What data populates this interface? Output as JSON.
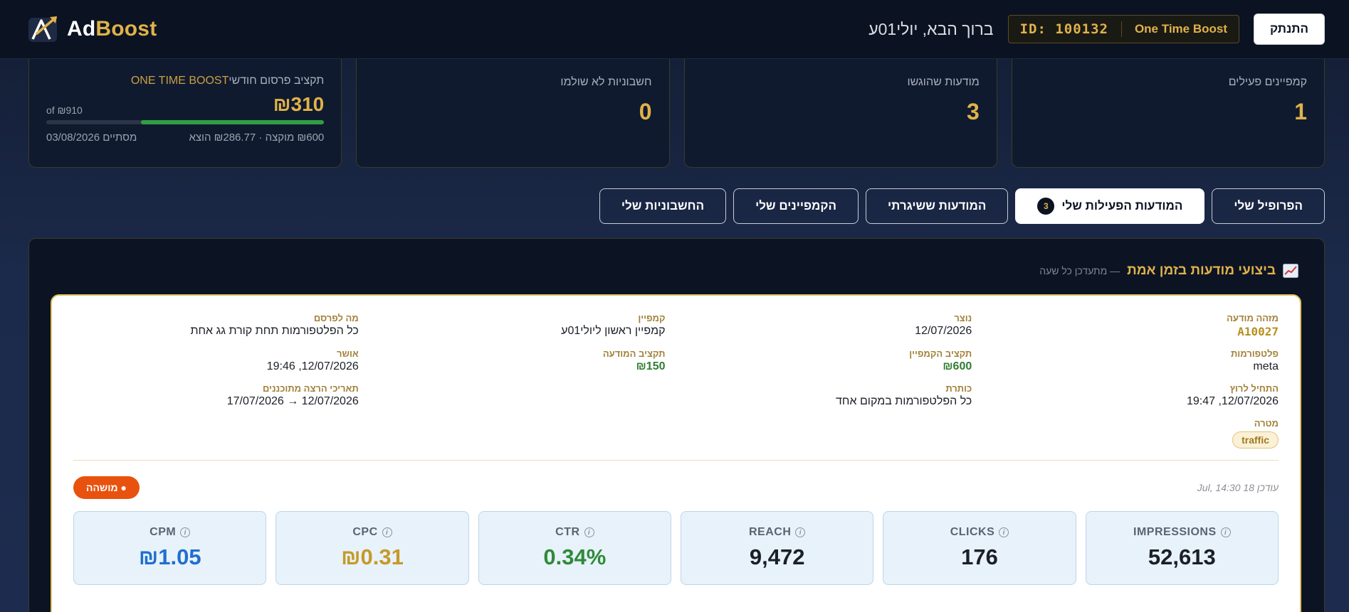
{
  "header": {
    "logo_ad": "Ad",
    "logo_boost": "Boost",
    "welcome": "ברוך הבא, יולי01ע",
    "account_id": "ID: 100132",
    "plan": "One Time Boost",
    "logout_label": "התנתק"
  },
  "stats": {
    "active_campaigns": {
      "label": "קמפיינים פעילים",
      "value": "1"
    },
    "submitted_ads": {
      "label": "מודעות שהוגשו",
      "value": "3"
    },
    "unpaid_invoices": {
      "label": "חשבוניות לא שולמו",
      "value": "0"
    },
    "budget": {
      "label": "תקציב פרסום חודשי",
      "plan_tag": "ONE TIME BOOST",
      "value": "₪310",
      "of_total": "of ₪910",
      "progress_fraction": 0.66,
      "allocated_spent": "₪600 מוקצה · ₪286.77 הוצא",
      "ends": "מסתיים 03/08/2026"
    }
  },
  "tabs": [
    {
      "label": "החשבוניות שלי",
      "active": false
    },
    {
      "label": "הקמפיינים שלי",
      "active": false
    },
    {
      "label": "המודעות ששיגרתי",
      "active": false
    },
    {
      "label": "המודעות הפעילות שלי",
      "active": true,
      "badge": "3"
    },
    {
      "label": "הפרופיל שלי",
      "active": false
    }
  ],
  "panel": {
    "title": "ביצועי מודעות בזמן אמת",
    "subtitle": "— מתעדכן כל שעה",
    "ad": {
      "ad_id": {
        "label": "מזהה מודעה",
        "value": "A10027"
      },
      "created": {
        "label": "נוצר",
        "value": "12/07/2026"
      },
      "campaign": {
        "label": "קמפיין",
        "value": "קמפיין ראשון ליולי01ע"
      },
      "promote": {
        "label": "מה לפרסם",
        "value": "כל הפלטפורמות תחת קורת גג אחת"
      },
      "platforms": {
        "label": "פלטפורמות",
        "value": "meta"
      },
      "campaign_budget": {
        "label": "תקציב הקמפיין",
        "value": "₪600"
      },
      "ad_budget": {
        "label": "תקציב המודעה",
        "value": "₪150"
      },
      "approved": {
        "label": "אושר",
        "value": "12/07/2026, 19:46"
      },
      "started": {
        "label": "התחיל לרוץ",
        "value": "12/07/2026, 19:47"
      },
      "headline": {
        "label": "כותרת",
        "value": "כל הפלטפורמות במקום אחד"
      },
      "planned_dates": {
        "label": "תאריכי הרצה מתוכננים",
        "value": "12/07/2026 → 17/07/2026"
      },
      "goal": {
        "label": "מטרה",
        "value": "traffic"
      }
    },
    "updated": "עודכן 18 Jul, 14:30",
    "status": "● מושהה",
    "metrics": [
      {
        "name": "IMPRESSIONS",
        "value": "52,613"
      },
      {
        "name": "CLICKS",
        "value": "176"
      },
      {
        "name": "REACH",
        "value": "9,472"
      },
      {
        "name": "CTR",
        "value": "0.34%"
      },
      {
        "name": "CPC",
        "value": "₪0.31"
      },
      {
        "name": "CPM",
        "value": "₪1.05"
      }
    ]
  },
  "colors": {
    "accent": "#e0b24a",
    "paused": "#e8520e",
    "progress": "#2ea043"
  }
}
